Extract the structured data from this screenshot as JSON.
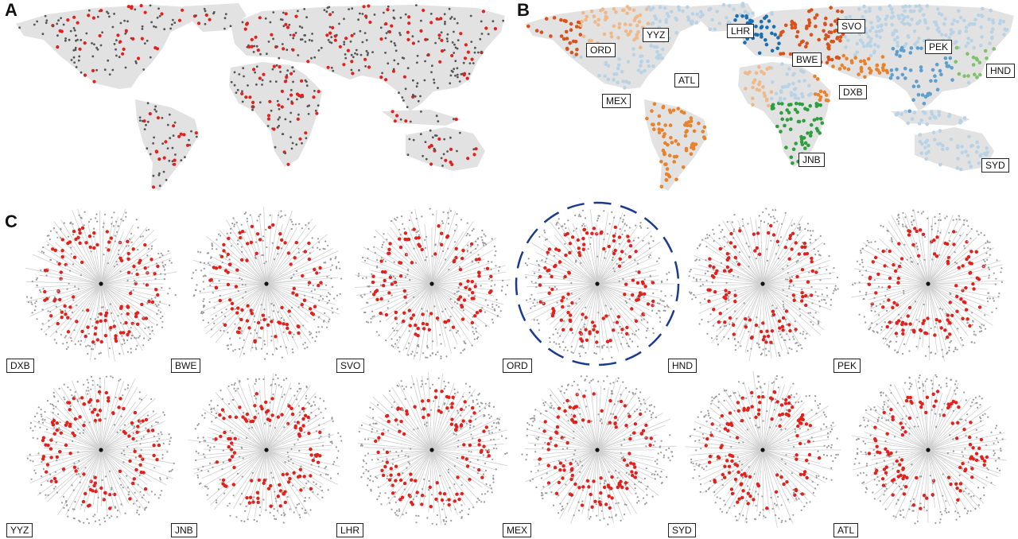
{
  "panels": {
    "a": "A",
    "b": "B",
    "c": "C"
  },
  "airports_b": [
    "LHR",
    "SVO",
    "YYZ",
    "ORD",
    "BWE",
    "PEK",
    "HND",
    "ATL",
    "DXB",
    "MEX",
    "JNB",
    "SYD"
  ],
  "trees": [
    {
      "label": "DXB"
    },
    {
      "label": "BWE"
    },
    {
      "label": "SVO"
    },
    {
      "label": "ORD"
    },
    {
      "label": "HND"
    },
    {
      "label": "PEK"
    },
    {
      "label": "YYZ"
    },
    {
      "label": "JNB"
    },
    {
      "label": "LHR"
    },
    {
      "label": "MEX"
    },
    {
      "label": "SYD"
    },
    {
      "label": "ATL"
    }
  ],
  "highlighted_tree": "ORD",
  "colors": {
    "land": "#e2e2e2",
    "red": "#e3211c",
    "dark": "#555555",
    "highlight_ring": "#1b3a8c",
    "clusters": [
      "#d8531b",
      "#f0b98a",
      "#e8822c",
      "#b9d3e6",
      "#5e9fcd",
      "#1b6fb0",
      "#2e9e3f",
      "#7fc26c"
    ]
  }
}
